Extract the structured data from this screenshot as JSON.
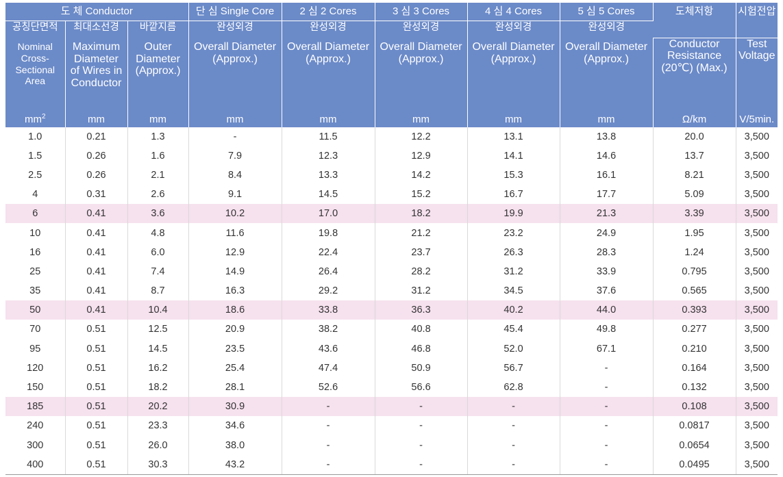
{
  "header": {
    "groups": [
      {
        "text": "도  체  Conductor",
        "colspan": 3
      },
      {
        "text": "단 심  Single Core"
      },
      {
        "text": "2 심  2 Cores"
      },
      {
        "text": "3 심  3 Cores"
      },
      {
        "text": "4 심  4 Cores"
      },
      {
        "text": "5 심  5 Cores"
      },
      {
        "text": "도체저항"
      },
      {
        "text": "시험전압"
      }
    ],
    "korean": [
      "공칭단면적",
      "최대소선경",
      "바깥지름",
      "완성외경",
      "완성외경",
      "완성외경",
      "완성외경",
      "완성외경"
    ],
    "english": [
      {
        "lines": [
          "Nominal",
          "Cross-",
          "Sectional Area"
        ],
        "small": true,
        "gap": true
      },
      {
        "lines": [
          "Maximum",
          "Diameter",
          "of Wires in",
          "Conductor"
        ],
        "gap": true
      },
      {
        "lines": [
          "Outer",
          "Diameter",
          "(Approx.)"
        ],
        "gap": true
      },
      {
        "lines": [
          "Overall Diameter",
          "(Approx.)"
        ],
        "gap": true
      },
      {
        "lines": [
          "Overall Diameter",
          "(Approx.)"
        ],
        "gap": true
      },
      {
        "lines": [
          "Overall Diameter",
          "(Approx.)"
        ],
        "gap": true
      },
      {
        "lines": [
          "Overall Diameter",
          "(Approx.)"
        ],
        "gap": true
      },
      {
        "lines": [
          "Overall Diameter",
          "(Approx.)"
        ],
        "gap": true
      },
      {
        "lines": [
          "Conductor",
          "Resistance",
          "(20℃) (Max.)"
        ],
        "gap": false
      },
      {
        "lines": [
          "Test",
          "Voltage"
        ],
        "gap": false
      }
    ],
    "units": [
      "mm",
      "mm",
      "mm",
      "mm",
      "mm",
      "mm",
      "mm",
      "mm",
      "Ω/km",
      "V/5min."
    ],
    "unit_sup_0": "2"
  },
  "highlight_color": "#f6e1ee",
  "header_color": "#6b8ac8",
  "rows": [
    {
      "cells": [
        "1.0",
        "0.21",
        "1.3",
        "-",
        "11.5",
        "12.2",
        "13.1",
        "13.8",
        "20.0",
        "3,500"
      ],
      "highlight": false
    },
    {
      "cells": [
        "1.5",
        "0.26",
        "1.6",
        "7.9",
        "12.3",
        "12.9",
        "14.1",
        "14.6",
        "13.7",
        "3,500"
      ],
      "highlight": false
    },
    {
      "cells": [
        "2.5",
        "0.26",
        "2.1",
        "8.4",
        "13.3",
        "14.2",
        "15.3",
        "16.1",
        "8.21",
        "3,500"
      ],
      "highlight": false
    },
    {
      "cells": [
        "4",
        "0.31",
        "2.6",
        "9.1",
        "14.5",
        "15.2",
        "16.7",
        "17.7",
        "5.09",
        "3,500"
      ],
      "highlight": false
    },
    {
      "cells": [
        "6",
        "0.41",
        "3.6",
        "10.2",
        "17.0",
        "18.2",
        "19.9",
        "21.3",
        "3.39",
        "3,500"
      ],
      "highlight": true
    },
    {
      "cells": [
        "10",
        "0.41",
        "4.8",
        "11.6",
        "19.8",
        "21.2",
        "23.2",
        "24.9",
        "1.95",
        "3,500"
      ],
      "highlight": false
    },
    {
      "cells": [
        "16",
        "0.41",
        "6.0",
        "12.9",
        "22.4",
        "23.7",
        "26.3",
        "28.3",
        "1.24",
        "3,500"
      ],
      "highlight": false
    },
    {
      "cells": [
        "25",
        "0.41",
        "7.4",
        "14.9",
        "26.4",
        "28.2",
        "31.2",
        "33.9",
        "0.795",
        "3,500"
      ],
      "highlight": false
    },
    {
      "cells": [
        "35",
        "0.41",
        "8.7",
        "16.3",
        "29.2",
        "31.2",
        "34.5",
        "37.6",
        "0.565",
        "3,500"
      ],
      "highlight": false
    },
    {
      "cells": [
        "50",
        "0.41",
        "10.4",
        "18.6",
        "33.8",
        "36.3",
        "40.2",
        "44.0",
        "0.393",
        "3,500"
      ],
      "highlight": true
    },
    {
      "cells": [
        "70",
        "0.51",
        "12.5",
        "20.9",
        "38.2",
        "40.8",
        "45.4",
        "49.8",
        "0.277",
        "3,500"
      ],
      "highlight": false
    },
    {
      "cells": [
        "95",
        "0.51",
        "14.5",
        "23.5",
        "43.6",
        "46.8",
        "52.0",
        "67.1",
        "0.210",
        "3,500"
      ],
      "highlight": false
    },
    {
      "cells": [
        "120",
        "0.51",
        "16.2",
        "25.4",
        "47.4",
        "50.9",
        "56.7",
        "-",
        "0.164",
        "3,500"
      ],
      "highlight": false
    },
    {
      "cells": [
        "150",
        "0.51",
        "18.2",
        "28.1",
        "52.6",
        "56.6",
        "62.8",
        "-",
        "0.132",
        "3,500"
      ],
      "highlight": false
    },
    {
      "cells": [
        "185",
        "0.51",
        "20.2",
        "30.9",
        "-",
        "-",
        "-",
        "-",
        "0.108",
        "3,500"
      ],
      "highlight": true
    },
    {
      "cells": [
        "240",
        "0.51",
        "23.3",
        "34.6",
        "-",
        "-",
        "-",
        "-",
        "0.0817",
        "3,500"
      ],
      "highlight": false
    },
    {
      "cells": [
        "300",
        "0.51",
        "26.0",
        "38.0",
        "-",
        "-",
        "-",
        "-",
        "0.0654",
        "3,500"
      ],
      "highlight": false
    },
    {
      "cells": [
        "400",
        "0.51",
        "30.3",
        "43.2",
        "-",
        "-",
        "-",
        "-",
        "0.0495",
        "3,500"
      ],
      "highlight": false
    }
  ]
}
